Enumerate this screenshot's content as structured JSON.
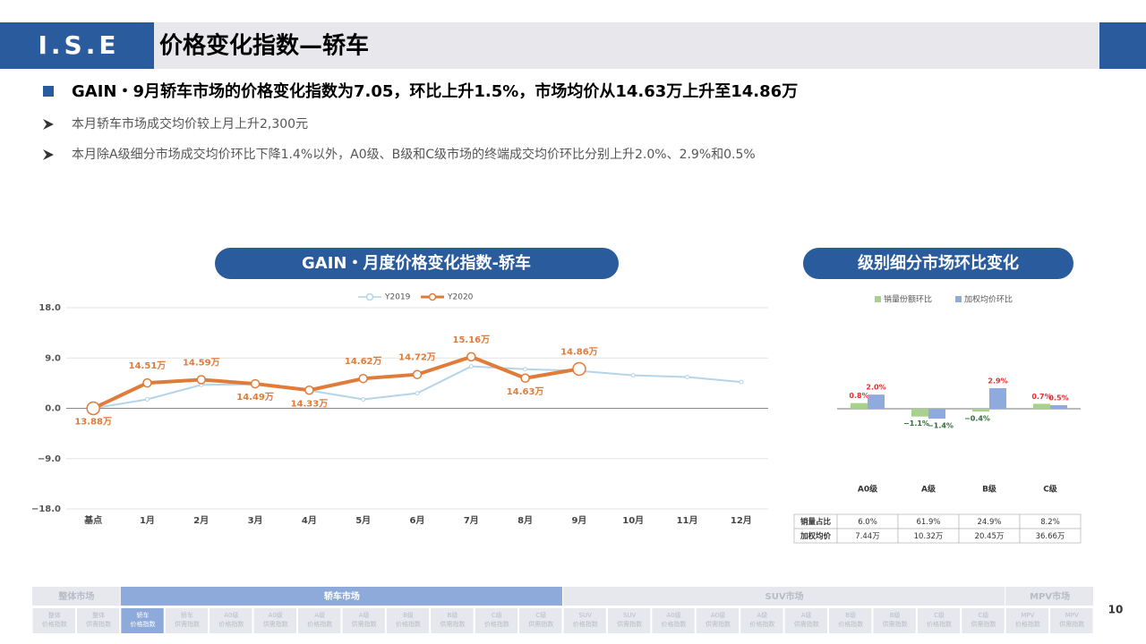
{
  "header": {
    "logo": "I.S.E",
    "title": "价格变化指数—轿车"
  },
  "summary": {
    "headline": "GAIN・9月轿车市场的价格变化指数为7.05，环比上升1.5%，市场均价从14.63万上升至14.86万",
    "points": [
      "本月轿车市场成交均价较上月上升2,300元",
      "本月除A级细分市场成交均价环比下降1.4%以外，A0级、B级和C级市场的终端成交均价环比分别上升2.0%、2.9%和0.5%"
    ]
  },
  "chart_data": [
    {
      "type": "line",
      "title": "GAIN・月度价格变化指数-轿车",
      "categories": [
        "基点",
        "1月",
        "2月",
        "3月",
        "4月",
        "5月",
        "6月",
        "7月",
        "8月",
        "9月",
        "10月",
        "11月",
        "12月"
      ],
      "series": [
        {
          "name": "Y2019",
          "color": "#b4d4ea",
          "values": [
            0,
            1.6,
            4.2,
            4.3,
            3.2,
            1.6,
            2.7,
            7.5,
            7.0,
            6.7,
            5.9,
            5.6,
            4.7
          ]
        },
        {
          "name": "Y2020",
          "color": "#e07b39",
          "values": [
            0,
            4.54,
            5.12,
            4.39,
            3.24,
            5.33,
            6.05,
            9.22,
            5.4,
            7.05,
            null,
            null,
            null
          ],
          "point_labels": [
            "13.88万",
            "14.51万",
            "14.59万",
            "14.49万",
            "14.33万",
            "14.62万",
            "14.72万",
            "15.16万",
            "14.63万",
            "14.86万",
            null,
            null,
            null
          ]
        }
      ],
      "ylim": [
        -18,
        18
      ],
      "yticks": [
        {
          "value": -18,
          "label": "−18.0"
        },
        {
          "value": -9,
          "label": "−9.0"
        },
        {
          "value": 0,
          "label": "0.0"
        },
        {
          "value": 9,
          "label": "9.0"
        },
        {
          "value": 18,
          "label": "18.0"
        }
      ],
      "grid": true,
      "legend": "top"
    },
    {
      "type": "bar",
      "title": "级别细分市场环比变化",
      "categories": [
        "A0级",
        "A级",
        "B级",
        "C级"
      ],
      "series": [
        {
          "name": "销量份额环比",
          "color": "#a9d18e",
          "values": [
            0.8,
            -1.1,
            -0.4,
            0.7
          ],
          "value_labels": [
            "0.8%",
            "−1.1%",
            "−0.4%",
            "0.7%"
          ]
        },
        {
          "name": "加权均价环比",
          "color": "#8faadc",
          "values": [
            2.0,
            -1.4,
            2.9,
            0.5
          ],
          "value_labels": [
            "2.0%",
            "−1.4%",
            "2.9%",
            "0.5%"
          ]
        }
      ],
      "legend": "top"
    }
  ],
  "table": {
    "rows": [
      [
        "销量占比",
        "6.0%",
        "61.9%",
        "24.9%",
        "8.2%"
      ],
      [
        "加权均价",
        "7.44万",
        "10.32万",
        "20.45万",
        "36.66万"
      ]
    ]
  },
  "nav": {
    "groups": [
      {
        "name": "整体市场",
        "items": [
          [
            "整体",
            "价格指数"
          ],
          [
            "整体",
            "供需指数"
          ]
        ]
      },
      {
        "name": "轿车市场",
        "active": true,
        "items": [
          [
            "轿车",
            "价格指数"
          ],
          [
            "轿车",
            "供需指数"
          ],
          [
            "A0级",
            "价格指数"
          ],
          [
            "A0级",
            "供需指数"
          ],
          [
            "A级",
            "价格指数"
          ],
          [
            "A级",
            "供需指数"
          ],
          [
            "B级",
            "价格指数"
          ],
          [
            "B级",
            "供需指数"
          ],
          [
            "C级",
            "价格指数"
          ],
          [
            "C级",
            "供需指数"
          ]
        ]
      },
      {
        "name": "SUV市场",
        "items": [
          [
            "SUV",
            "价格指数"
          ],
          [
            "SUV",
            "供需指数"
          ],
          [
            "A0级",
            "价格指数"
          ],
          [
            "A0级",
            "供需指数"
          ],
          [
            "A级",
            "价格指数"
          ],
          [
            "A级",
            "供需指数"
          ],
          [
            "B级",
            "价格指数"
          ],
          [
            "B级",
            "供需指数"
          ],
          [
            "C级",
            "价格指数"
          ],
          [
            "C级",
            "供需指数"
          ]
        ]
      },
      {
        "name": "MPV市场",
        "items": [
          [
            "MPV",
            "价格指数"
          ],
          [
            "MPV",
            "供需指数"
          ]
        ]
      }
    ],
    "active_item": [
      1,
      0
    ]
  },
  "page_number": 10
}
